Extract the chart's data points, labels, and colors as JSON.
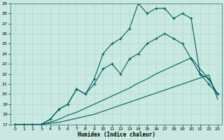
{
  "xlabel": "Humidex (Indice chaleur)",
  "bg_color": "#c8e8e0",
  "line_color": "#006060",
  "xlim": [
    -0.5,
    23.5
  ],
  "ylim": [
    17,
    29
  ],
  "xticks": [
    0,
    1,
    2,
    3,
    4,
    5,
    6,
    7,
    8,
    9,
    10,
    11,
    12,
    13,
    14,
    15,
    16,
    17,
    18,
    19,
    20,
    21,
    22,
    23
  ],
  "yticks": [
    17,
    18,
    19,
    20,
    21,
    22,
    23,
    24,
    25,
    26,
    27,
    28,
    29
  ],
  "grid_color": "#b0d8d0",
  "line_straight1": {
    "x": [
      0,
      1,
      2,
      3,
      4,
      5,
      6,
      7,
      8,
      9,
      10,
      11,
      12,
      13,
      14,
      15,
      16,
      17,
      18,
      19,
      20,
      21,
      22,
      23
    ],
    "y": [
      17,
      17,
      17,
      17,
      17.1,
      17.2,
      17.4,
      17.6,
      17.8,
      18.0,
      18.3,
      18.6,
      18.9,
      19.2,
      19.5,
      19.8,
      20.1,
      20.4,
      20.7,
      21.0,
      21.3,
      21.6,
      21.9,
      19.5
    ]
  },
  "line_straight2": {
    "x": [
      0,
      1,
      2,
      3,
      4,
      5,
      6,
      7,
      8,
      9,
      10,
      11,
      12,
      13,
      14,
      15,
      16,
      17,
      18,
      19,
      20,
      21,
      22,
      23
    ],
    "y": [
      17,
      17,
      17,
      17,
      17.2,
      17.5,
      17.9,
      18.2,
      18.6,
      19.0,
      19.4,
      19.8,
      20.2,
      20.6,
      21.1,
      21.5,
      22.0,
      22.4,
      22.8,
      23.2,
      23.6,
      22.5,
      21.5,
      20.0
    ]
  },
  "line_curved1": {
    "x": [
      0,
      1,
      2,
      3,
      4,
      5,
      6,
      7,
      8,
      9,
      10,
      11,
      12,
      13,
      14,
      15,
      16,
      17,
      18,
      19,
      20,
      21,
      22,
      23
    ],
    "y": [
      17,
      17,
      17,
      17,
      17.5,
      18.5,
      19.0,
      20.5,
      20.0,
      21.0,
      22.5,
      23.0,
      22.0,
      23.5,
      24.0,
      25.0,
      25.5,
      26.0,
      25.5,
      25.0,
      23.5,
      22.0,
      21.5,
      20.0
    ]
  },
  "line_curved2": {
    "x": [
      0,
      1,
      2,
      3,
      4,
      5,
      6,
      7,
      8,
      9,
      10,
      11,
      12,
      13,
      14,
      15,
      16,
      17,
      18,
      19,
      20,
      21,
      22,
      23
    ],
    "y": [
      17,
      17,
      17,
      17,
      17.5,
      18.5,
      19.0,
      20.5,
      20.0,
      21.5,
      24.0,
      25.0,
      25.5,
      26.5,
      29.0,
      28.0,
      28.5,
      28.5,
      27.5,
      28.0,
      27.5,
      22.0,
      21.0,
      20.0
    ]
  }
}
